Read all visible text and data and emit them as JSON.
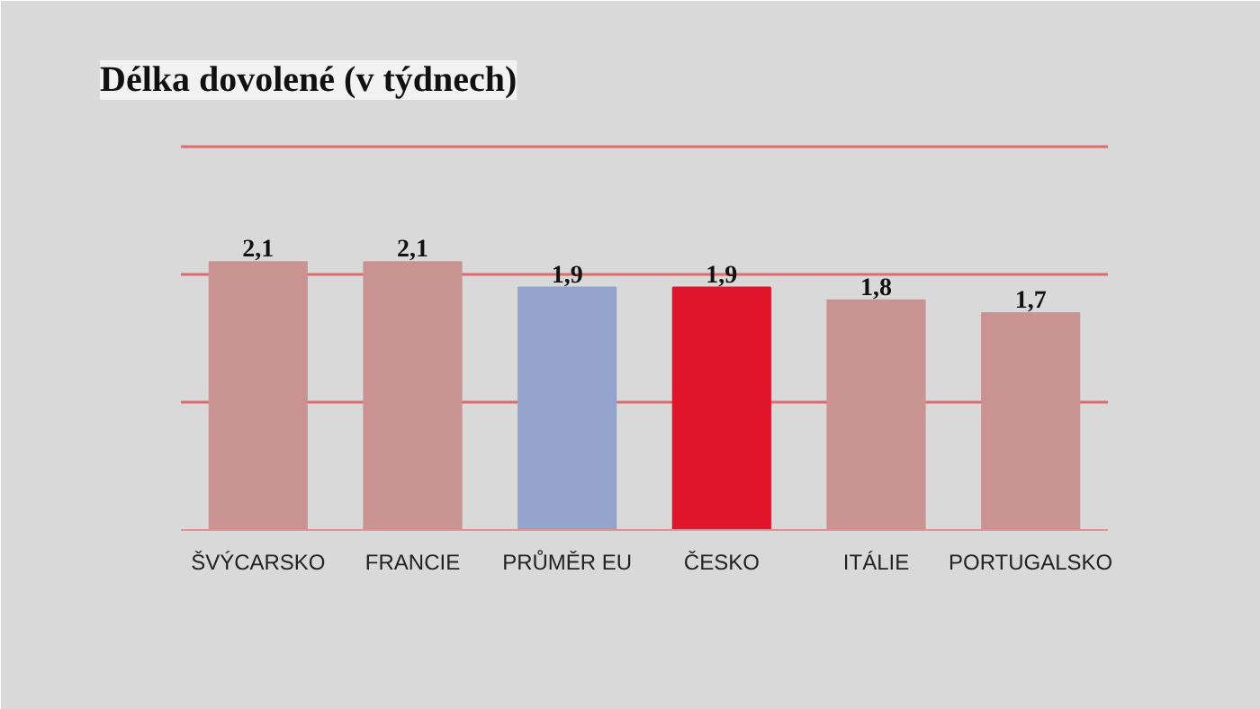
{
  "chart_data": {
    "type": "bar",
    "title": "Délka dovolené (v týdnech)",
    "categories": [
      "ŠVÝCARSKO",
      "FRANCIE",
      "PRŮMĚR EU",
      "ČESKO",
      "ITÁLIE",
      "PORTUGALSKO"
    ],
    "values": [
      2.1,
      2.1,
      1.9,
      1.9,
      1.8,
      1.7
    ],
    "colors": [
      "#c99391",
      "#c99391",
      "#94a3cc",
      "#e0142b",
      "#c99391",
      "#c99391"
    ],
    "value_labels": [
      "2,1",
      "2,1",
      "1,9",
      "1,9",
      "1,8",
      "1,7"
    ],
    "ylim": [
      0,
      3.3
    ],
    "yticks": [
      {
        "value": 1,
        "label": null
      },
      {
        "value": 2,
        "label": null
      },
      {
        "value": 3,
        "label": null
      }
    ],
    "grid": "y",
    "tick_labels": "x"
  }
}
